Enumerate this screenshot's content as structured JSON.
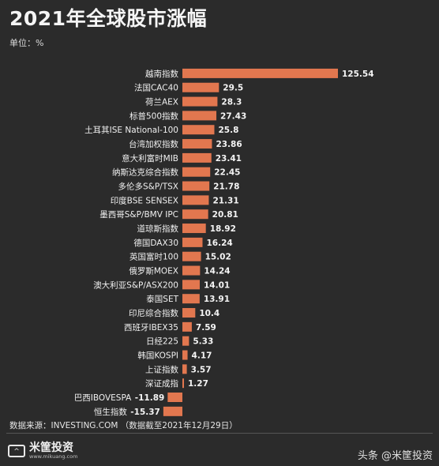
{
  "header": {
    "title": "2021年全球股市涨幅",
    "unit": "单位：%"
  },
  "chart_data": {
    "type": "bar",
    "orientation": "horizontal",
    "bar_color": "#e2774f",
    "categories": [
      "越南指数",
      "法国CAC40",
      "荷兰AEX",
      "标普500指数",
      "土耳其ISE National-100",
      "台湾加权指数",
      "意大利富时MIB",
      "纳斯达克综合指数",
      "多伦多S&P/TSX",
      "印度BSE SENSEX",
      "墨西哥S&P/BMV IPC",
      "道琼斯指数",
      "德国DAX30",
      "英国富时100",
      "俄罗斯MOEX",
      "澳大利亚S&P/ASX200",
      "泰国SET",
      "印尼综合指数",
      "西班牙IBEX35",
      "日经225",
      "韩国KOSPI",
      "上证指数",
      "深证成指",
      "巴西IBOVESPA",
      "恒生指数"
    ],
    "values": [
      125.54,
      29.5,
      28.3,
      27.43,
      25.8,
      23.86,
      23.41,
      22.45,
      21.78,
      21.31,
      20.81,
      18.92,
      16.24,
      15.02,
      14.24,
      14.01,
      13.91,
      10.4,
      7.59,
      5.33,
      4.17,
      3.57,
      1.27,
      -11.89,
      -15.37
    ],
    "value_labels": [
      "125.54",
      "29.5",
      "28.3",
      "27.43",
      "25.8",
      "23.86",
      "23.41",
      "22.45",
      "21.78",
      "21.31",
      "20.81",
      "18.92",
      "16.24",
      "15.02",
      "14.24",
      "14.01",
      "13.91",
      "10.4",
      "7.59",
      "5.33",
      "4.17",
      "3.57",
      "1.27",
      "-11.89",
      "-15.37"
    ]
  },
  "footer": {
    "source": "数据来源：INVESTING.COM （数据截至2021年12月29日）",
    "logo_name": "米筐投资",
    "logo_url": "www.mikuang.com",
    "watermark": "头条 @米筐投资"
  }
}
